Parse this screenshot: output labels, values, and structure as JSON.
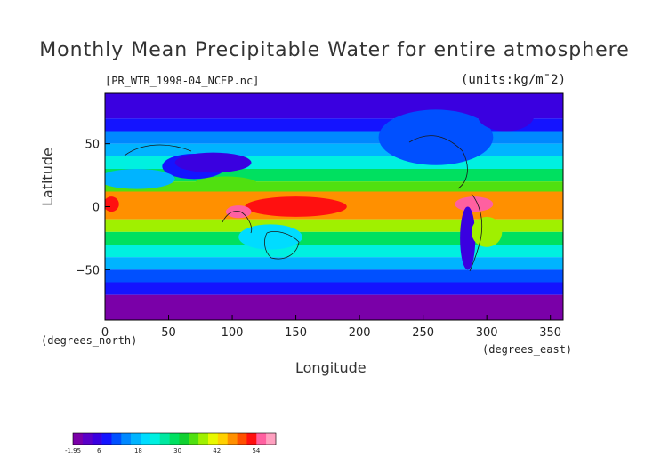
{
  "title": "Monthly Mean Precipitable Water for entire atmosphere",
  "file_label": "[PR_WTR_1998-04_NCEP.nc]",
  "units_label": "(units:kg/m¯2)",
  "ylabel": "Latitude",
  "xlabel": "Longitude",
  "lat_unit": "(degrees_north)",
  "lon_unit": "(degrees_east)",
  "chart_data": {
    "type": "heatmap",
    "title": "Monthly Mean Precipitable Water for entire atmosphere",
    "xlabel": "Longitude",
    "ylabel": "Latitude",
    "xlim": [
      0,
      360
    ],
    "ylim": [
      -90,
      90
    ],
    "x_ticks": [
      "0",
      "50",
      "100",
      "150",
      "200",
      "250",
      "300",
      "350"
    ],
    "y_ticks": [
      "50",
      "0",
      "−50"
    ],
    "x_tick_values": [
      0,
      50,
      100,
      150,
      200,
      250,
      300,
      350
    ],
    "y_tick_values": [
      50,
      0,
      -50
    ],
    "bands": [
      {
        "lat_from": 90,
        "lat_to": 70,
        "value": 4
      },
      {
        "lat_from": 70,
        "lat_to": 60,
        "value": 8
      },
      {
        "lat_from": 60,
        "lat_to": 50,
        "value": 14
      },
      {
        "lat_from": 50,
        "lat_to": 40,
        "value": 18
      },
      {
        "lat_from": 40,
        "lat_to": 30,
        "value": 22
      },
      {
        "lat_from": 30,
        "lat_to": 20,
        "value": 28
      },
      {
        "lat_from": 20,
        "lat_to": 12,
        "value": 36
      },
      {
        "lat_from": 12,
        "lat_to": -10,
        "value": 48
      },
      {
        "lat_from": -10,
        "lat_to": -20,
        "value": 38
      },
      {
        "lat_from": -20,
        "lat_to": -30,
        "value": 28
      },
      {
        "lat_from": -30,
        "lat_to": -40,
        "value": 22
      },
      {
        "lat_from": -40,
        "lat_to": -50,
        "value": 16
      },
      {
        "lat_from": -50,
        "lat_to": -60,
        "value": 12
      },
      {
        "lat_from": -60,
        "lat_to": -70,
        "value": 7
      },
      {
        "lat_from": -70,
        "lat_to": -90,
        "value": 0
      }
    ],
    "features": [
      {
        "lon": 70,
        "lat": 32,
        "w": 25,
        "h": 10,
        "value": 8
      },
      {
        "lon": 85,
        "lat": 35,
        "w": 30,
        "h": 8,
        "value": 4
      },
      {
        "lon": 260,
        "lat": 55,
        "w": 45,
        "h": 22,
        "value": 10
      },
      {
        "lon": 315,
        "lat": 72,
        "w": 22,
        "h": 12,
        "value": 4
      },
      {
        "lon": 95,
        "lat": 18,
        "w": 25,
        "h": 6,
        "value": 36
      },
      {
        "lon": 150,
        "lat": 0,
        "w": 40,
        "h": 8,
        "value": 54
      },
      {
        "lon": 105,
        "lat": -4,
        "w": 10,
        "h": 5,
        "value": 56
      },
      {
        "lon": 290,
        "lat": 2,
        "w": 15,
        "h": 6,
        "value": 56
      },
      {
        "lon": 5,
        "lat": 2,
        "w": 6,
        "h": 6,
        "value": 54
      },
      {
        "lon": 285,
        "lat": -25,
        "w": 6,
        "h": 25,
        "value": 6
      },
      {
        "lon": 300,
        "lat": -20,
        "w": 12,
        "h": 12,
        "value": 38
      },
      {
        "lon": 25,
        "lat": 22,
        "w": 30,
        "h": 8,
        "value": 16
      },
      {
        "lon": 130,
        "lat": -24,
        "w": 25,
        "h": 10,
        "value": 20
      }
    ],
    "colorbar": {
      "min": -1.95,
      "max": 60,
      "colors": [
        "#7a00a8",
        "#5a00c8",
        "#3a00e0",
        "#1414ff",
        "#0050ff",
        "#0088ff",
        "#00b4ff",
        "#00dcff",
        "#00f0e0",
        "#00e8a0",
        "#00e060",
        "#10d030",
        "#50e010",
        "#a0f000",
        "#e8f800",
        "#ffd000",
        "#ff9000",
        "#ff5000",
        "#ff1010",
        "#ff60a0",
        "#ffa0c0"
      ],
      "tick_labels": [
        "-1.95",
        "6",
        "18",
        "30",
        "42",
        "54"
      ],
      "tick_values": [
        -1.95,
        6,
        18,
        30,
        42,
        54
      ]
    },
    "grid": false,
    "legend": "bottom-left"
  }
}
